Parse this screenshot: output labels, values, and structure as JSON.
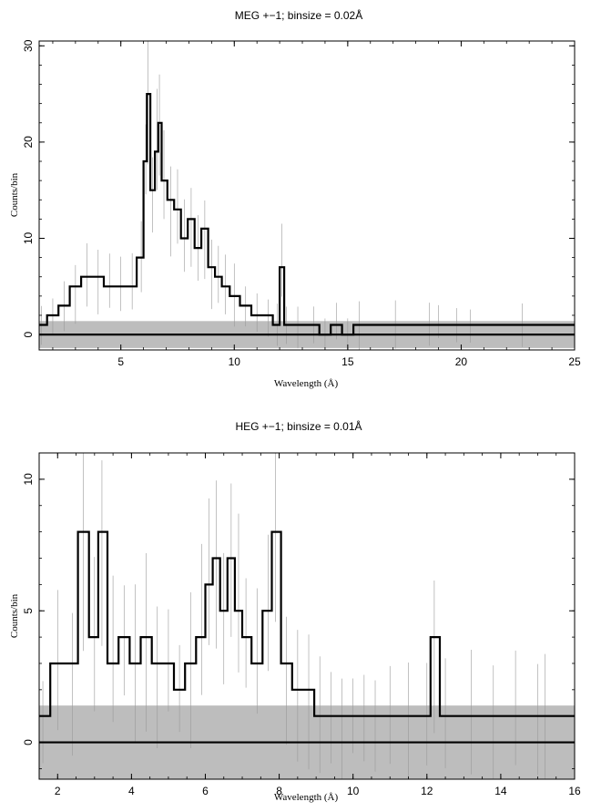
{
  "chart_data": [
    {
      "type": "line",
      "title": "MEG +−1; binsize = 0.02Å",
      "xlabel": "Wavelength (Å)",
      "ylabel": "Counts/bin",
      "xlim": [
        1.4,
        25
      ],
      "ylim": [
        -1.6,
        30.5
      ],
      "xticks": [
        5,
        10,
        15,
        20,
        25
      ],
      "yticks": [
        0,
        10,
        20,
        30
      ],
      "binsize": 0.02,
      "error_band_half_width": 1.4,
      "series": [
        {
          "style": "step",
          "color": "#000000",
          "x": [
            1.5,
            2.0,
            2.5,
            3.0,
            3.5,
            4.0,
            4.5,
            5.0,
            5.5,
            5.9,
            6.1,
            6.2,
            6.4,
            6.6,
            6.7,
            6.9,
            7.2,
            7.5,
            7.8,
            8.1,
            8.4,
            8.7,
            9.0,
            9.3,
            9.6,
            10.0,
            10.5,
            11.0,
            11.5,
            11.9,
            12.1,
            12.3,
            12.8,
            13.5,
            14.0,
            14.5,
            15.0,
            15.5,
            17.1,
            18.6,
            19.0,
            19.8,
            20.4,
            22.7,
            25.0
          ],
          "y": [
            1,
            2,
            3,
            5,
            6,
            6,
            5,
            5,
            5,
            8,
            18,
            25,
            15,
            19,
            22,
            16,
            14,
            13,
            10,
            12,
            9,
            11,
            7,
            6,
            5,
            4,
            3,
            2,
            2,
            1,
            7,
            1,
            1,
            1,
            0,
            1,
            0,
            1,
            1,
            1,
            1,
            1,
            1,
            1,
            1
          ]
        }
      ]
    },
    {
      "type": "line",
      "title": "HEG +−1; binsize = 0.01Å",
      "xlabel": "Wavelength (Å)",
      "ylabel": "Counts/bin",
      "xlim": [
        1.5,
        16
      ],
      "ylim": [
        -1.4,
        11
      ],
      "xticks": [
        2,
        4,
        6,
        8,
        10,
        12,
        14,
        16
      ],
      "yticks": [
        0,
        5,
        10
      ],
      "binsize": 0.01,
      "error_band_half_width": 1.4,
      "series": [
        {
          "style": "step",
          "color": "#000000",
          "x": [
            1.6,
            2.0,
            2.4,
            2.7,
            3.0,
            3.2,
            3.5,
            3.8,
            4.1,
            4.4,
            4.7,
            5.0,
            5.3,
            5.6,
            5.9,
            6.1,
            6.3,
            6.5,
            6.7,
            6.9,
            7.1,
            7.4,
            7.7,
            7.9,
            8.2,
            8.5,
            8.8,
            9.1,
            9.4,
            9.7,
            10.0,
            10.3,
            10.6,
            11.0,
            11.5,
            12.0,
            12.2,
            12.5,
            13.2,
            13.8,
            14.4,
            15.0,
            15.2
          ],
          "y": [
            1,
            3,
            3,
            8,
            4,
            8,
            3,
            4,
            3,
            4,
            3,
            3,
            2,
            3,
            4,
            6,
            7,
            5,
            7,
            5,
            4,
            3,
            5,
            8,
            3,
            2,
            2,
            1,
            1,
            1,
            1,
            1,
            1,
            1,
            1,
            1,
            4,
            1,
            1,
            1,
            1,
            1,
            1
          ]
        }
      ]
    }
  ]
}
